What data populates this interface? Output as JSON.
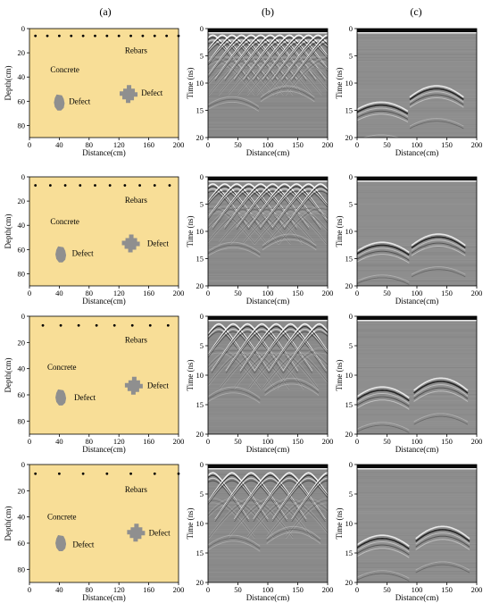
{
  "column_labels": [
    "(a)",
    "(b)",
    "(c)"
  ],
  "model": {
    "fill_color": "#f8de97",
    "defect_color": "#8f8f8f",
    "ylabel": "Depth(cm)",
    "xlabel": "Distance(cm)",
    "xticks": [
      0,
      40,
      80,
      120,
      160,
      200
    ],
    "yticks": [
      0,
      20,
      40,
      60,
      80
    ],
    "xlim": [
      0,
      200
    ],
    "ylim": [
      0,
      90
    ],
    "labels": {
      "rebars": "Rebars",
      "concrete": "Concrete",
      "defect": "Defect"
    }
  },
  "radargram": {
    "ylabel": "Time (ns)",
    "xlabel": "Distance(cm)",
    "xticks": [
      0,
      50,
      100,
      150,
      200
    ],
    "yticks": [
      0,
      5,
      10,
      15,
      20
    ],
    "xlim": [
      0,
      200
    ],
    "ylim": [
      0,
      20
    ]
  },
  "rows": [
    {
      "rebar_depth_cm": 6,
      "rebar_x_cm": [
        8,
        24,
        40,
        56,
        72,
        88,
        104,
        120,
        136,
        152,
        168,
        184,
        200
      ],
      "defects_cm": [
        {
          "x": 40,
          "y": 61,
          "shape": "blob"
        },
        {
          "x": 133,
          "y": 54,
          "shape": "cross"
        }
      ],
      "defect_label_pos_cm": [
        {
          "x": 53,
          "y": 60
        },
        {
          "x": 150,
          "y": 53
        }
      ],
      "rebars_label_pos_cm": {
        "x": 128,
        "y": 18
      },
      "concrete_label_pos_cm": {
        "x": 28,
        "y": 34
      },
      "b_hyperbola_t0_ns": 1.2,
      "b_defect_t0_ns": [
        12.5,
        10.5
      ],
      "c_defect_t0_ns": [
        13.5,
        10.5
      ]
    },
    {
      "rebar_depth_cm": 7,
      "rebar_x_cm": [
        8,
        28,
        48,
        68,
        88,
        108,
        128,
        148,
        168,
        188
      ],
      "defects_cm": [
        {
          "x": 42,
          "y": 64,
          "shape": "blob"
        },
        {
          "x": 136,
          "y": 55,
          "shape": "cross"
        }
      ],
      "defect_label_pos_cm": [
        {
          "x": 57,
          "y": 63
        },
        {
          "x": 158,
          "y": 55
        }
      ],
      "rebars_label_pos_cm": {
        "x": 128,
        "y": 19
      },
      "concrete_label_pos_cm": {
        "x": 28,
        "y": 37
      },
      "b_hyperbola_t0_ns": 1.3,
      "b_defect_t0_ns": [
        12.0,
        10.5
      ],
      "c_defect_t0_ns": [
        12.0,
        10.5
      ]
    },
    {
      "rebar_depth_cm": 7,
      "rebar_x_cm": [
        18,
        42,
        66,
        90,
        114,
        138,
        162,
        186
      ],
      "defects_cm": [
        {
          "x": 42,
          "y": 62,
          "shape": "blob"
        },
        {
          "x": 140,
          "y": 53,
          "shape": "cross"
        }
      ],
      "defect_label_pos_cm": [
        {
          "x": 60,
          "y": 62
        },
        {
          "x": 158,
          "y": 53
        }
      ],
      "rebars_label_pos_cm": {
        "x": 128,
        "y": 18
      },
      "concrete_label_pos_cm": {
        "x": 24,
        "y": 39
      },
      "b_hyperbola_t0_ns": 1.3,
      "b_defect_t0_ns": [
        12.0,
        10.5
      ],
      "c_defect_t0_ns": [
        12.0,
        10.5
      ]
    },
    {
      "rebar_depth_cm": 7,
      "rebar_x_cm": [
        8,
        40,
        72,
        104,
        136,
        168,
        200
      ],
      "defects_cm": [
        {
          "x": 42,
          "y": 60,
          "shape": "blob"
        },
        {
          "x": 143,
          "y": 52,
          "shape": "cross"
        }
      ],
      "defect_label_pos_cm": [
        {
          "x": 58,
          "y": 61
        },
        {
          "x": 160,
          "y": 52
        }
      ],
      "rebars_label_pos_cm": {
        "x": 128,
        "y": 19
      },
      "concrete_label_pos_cm": {
        "x": 24,
        "y": 40
      },
      "b_hyperbola_t0_ns": 1.4,
      "b_defect_t0_ns": [
        12.0,
        10.5
      ],
      "c_defect_t0_ns": [
        12.0,
        10.5
      ]
    }
  ]
}
